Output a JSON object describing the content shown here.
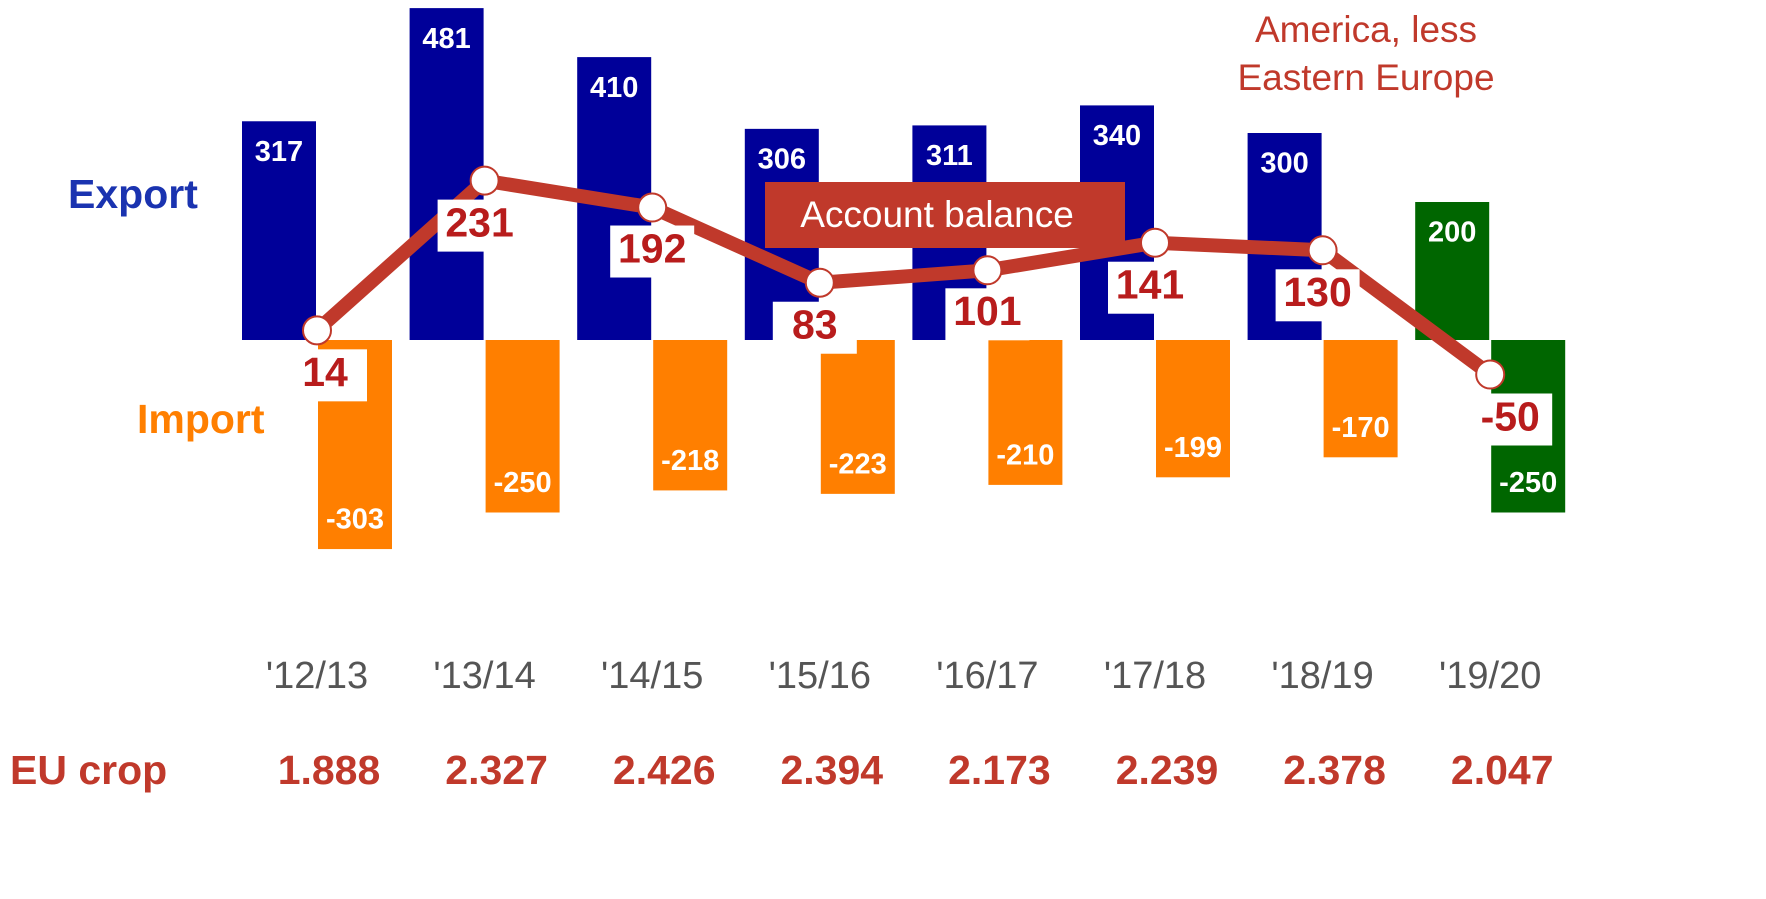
{
  "chart_data": {
    "type": "bar",
    "categories": [
      "'12/13",
      "'13/14",
      "'14/15",
      "'15/16",
      "'16/17",
      "'17/18",
      "'18/19",
      "'19/20"
    ],
    "series": [
      {
        "name": "Export",
        "color": "#000099",
        "colors": [
          "#000099",
          "#000099",
          "#000099",
          "#000099",
          "#000099",
          "#000099",
          "#000099",
          "#006600"
        ],
        "values": [
          317,
          481,
          410,
          306,
          311,
          340,
          300,
          200
        ]
      },
      {
        "name": "Import",
        "color": "#ff7f00",
        "colors": [
          "#ff7f00",
          "#ff7f00",
          "#ff7f00",
          "#ff7f00",
          "#ff7f00",
          "#ff7f00",
          "#ff7f00",
          "#006600"
        ],
        "values": [
          -303,
          -250,
          -218,
          -223,
          -210,
          -199,
          -170,
          -250
        ]
      },
      {
        "name": "Account balance",
        "type": "line",
        "color": "#c0392b",
        "values": [
          14,
          231,
          192,
          83,
          101,
          141,
          130,
          -50
        ]
      }
    ],
    "ylim": [
      -400,
      500
    ],
    "annotation": [
      "America, less",
      "Eastern Europe"
    ],
    "row_label": "EU crop",
    "row_values": [
      "1.888",
      "2.327",
      "2.426",
      "2.394",
      "2.173",
      "2.239",
      "2.378",
      "2.047"
    ]
  }
}
